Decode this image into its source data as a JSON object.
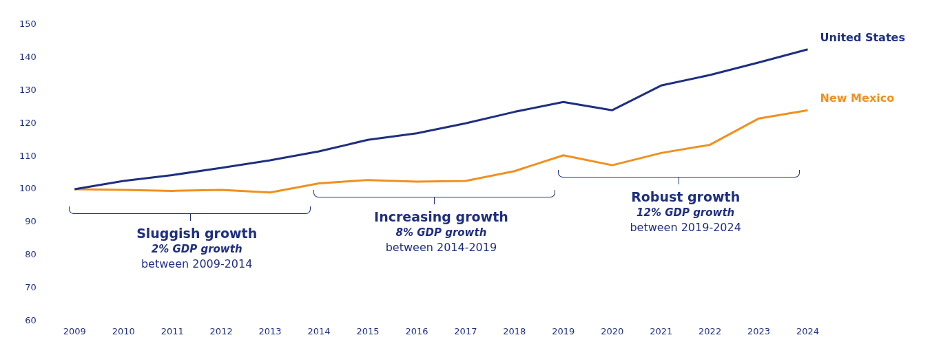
{
  "chart_data": {
    "type": "line",
    "categories": [
      "2009",
      "2010",
      "2011",
      "2012",
      "2013",
      "2014",
      "2015",
      "2016",
      "2017",
      "2018",
      "2019",
      "2020",
      "2021",
      "2022",
      "2023",
      "2024"
    ],
    "series": [
      {
        "name": "United States",
        "color": "#1f2f80",
        "values": [
          100,
          102.5,
          104.3,
          106.5,
          108.8,
          111.5,
          115,
          117,
          120,
          123.5,
          126.5,
          124,
          131.5,
          134.7,
          138.5,
          142.5
        ]
      },
      {
        "name": "New Mexico",
        "color": "#f0901e",
        "values": [
          100,
          99.8,
          99.5,
          99.8,
          99,
          101.8,
          102.8,
          102.3,
          102.5,
          105.5,
          110.3,
          107.3,
          111,
          113.5,
          121.5,
          124
        ]
      }
    ],
    "ylim": [
      60,
      150
    ],
    "yticks": [
      60,
      70,
      80,
      90,
      100,
      110,
      120,
      130,
      140,
      150
    ],
    "grid": false,
    "legend": false,
    "marker": "none",
    "line_style": "solid",
    "annotations": [
      "Sluggish growth",
      "2% GDP growth",
      "between 2009-2014",
      "Increasing growth",
      "8% GDP growth",
      "between 2014-2019",
      "Robust growth",
      "12% GDP growth",
      "between 2019-2024"
    ]
  }
}
